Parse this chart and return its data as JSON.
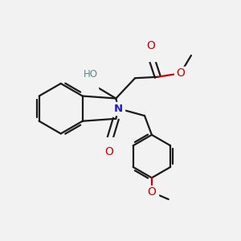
{
  "bg_color": "#f2f2f2",
  "bond_color": "#1a1a1a",
  "oxygen_color": "#cc0000",
  "nitrogen_color": "#1a1acc",
  "hydrogen_color": "#5a8a8a",
  "linewidth": 1.6,
  "figsize": [
    3.0,
    3.0
  ],
  "dpi": 100,
  "xlim": [
    0,
    10
  ],
  "ylim": [
    0,
    10
  ]
}
